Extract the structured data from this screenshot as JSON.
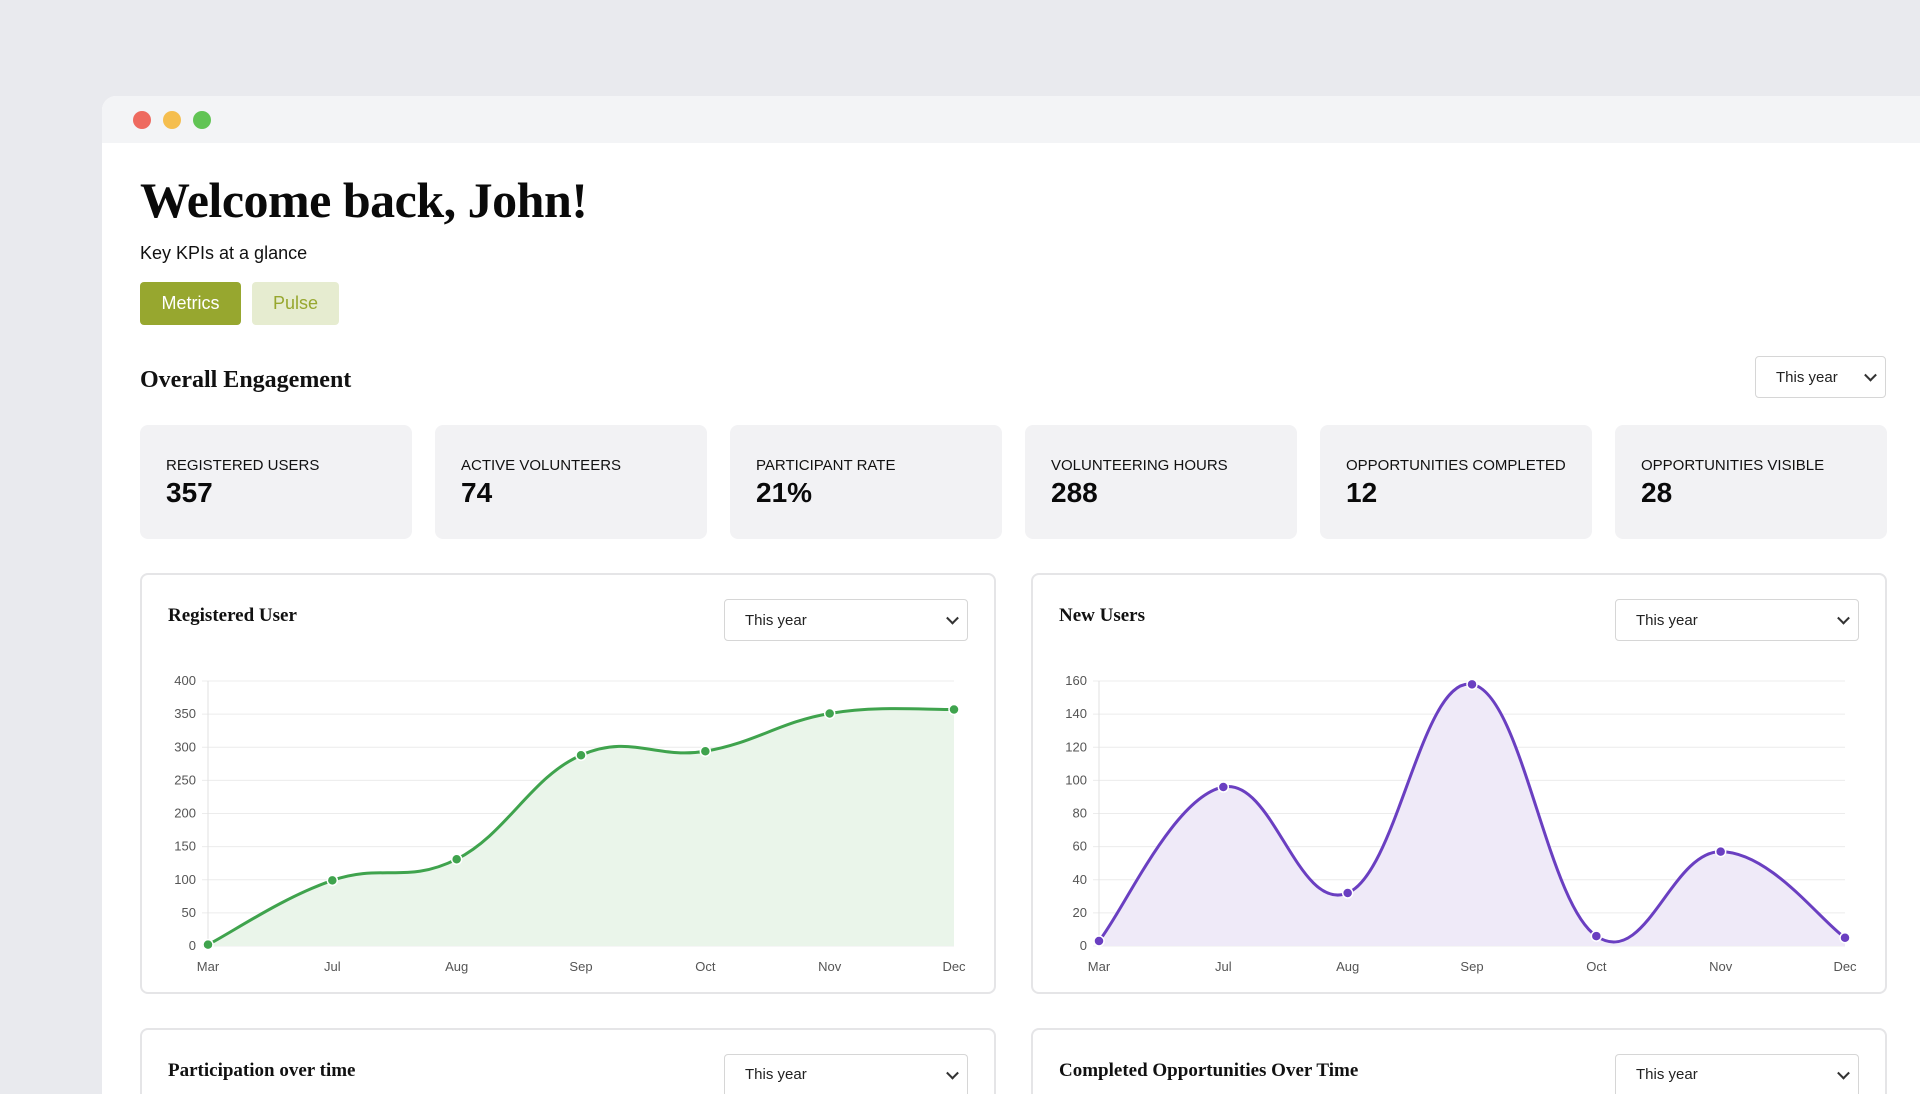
{
  "window": {
    "controls": [
      {
        "name": "close",
        "color": "#ee6a5f"
      },
      {
        "name": "minimize",
        "color": "#f5be4f"
      },
      {
        "name": "maximize",
        "color": "#61c454"
      }
    ]
  },
  "header": {
    "title": "Welcome back, John!",
    "subtitle": "Key KPIs at a glance"
  },
  "tabs": [
    {
      "label": "Metrics",
      "active": true
    },
    {
      "label": "Pulse",
      "active": false
    }
  ],
  "colors": {
    "accent": "#97a72f",
    "accent_light": "#e6ecd0",
    "green_series": "#3fa34d",
    "purple_series": "#6a3fc1"
  },
  "engagement": {
    "title": "Overall Engagement",
    "period": "This year",
    "kpis": [
      {
        "label": "REGISTERED USERS",
        "value": "357"
      },
      {
        "label": "ACTIVE VOLUNTEERS",
        "value": "74"
      },
      {
        "label": "PARTICIPANT RATE",
        "value": "21%"
      },
      {
        "label": "VOLUNTEERING HOURS",
        "value": "288"
      },
      {
        "label": "OPPORTUNITIES COMPLETED",
        "value": "12"
      },
      {
        "label": "OPPORTUNITIES VISIBLE",
        "value": "28"
      }
    ]
  },
  "cards": [
    {
      "title": "Registered User",
      "period": "This year"
    },
    {
      "title": "New Users",
      "period": "This year"
    },
    {
      "title": "Participation over time",
      "period": "This year"
    },
    {
      "title": "Completed Opportunities Over Time",
      "period": "This year"
    }
  ],
  "chart_data": [
    {
      "type": "area",
      "title": "Registered User",
      "categories": [
        "Mar",
        "Jul",
        "Aug",
        "Sep",
        "Oct",
        "Nov",
        "Dec"
      ],
      "values": [
        2,
        99,
        131,
        288,
        294,
        351,
        357
      ],
      "ylim": [
        0,
        400
      ],
      "yticks": [
        "0",
        "50",
        "100",
        "150",
        "200",
        "250",
        "300",
        "350",
        "400"
      ],
      "grid": true,
      "color": "#3fa34d",
      "fill": "#eaf5ea"
    },
    {
      "type": "area",
      "title": "New Users",
      "categories": [
        "Mar",
        "Jul",
        "Aug",
        "Sep",
        "Oct",
        "Nov",
        "Dec"
      ],
      "values": [
        3,
        96,
        32,
        158,
        6,
        57,
        5
      ],
      "ylim": [
        0,
        160
      ],
      "yticks": [
        "0",
        "20",
        "40",
        "60",
        "80",
        "100",
        "120",
        "140",
        "160"
      ],
      "grid": true,
      "color": "#6a3fc1",
      "fill": "#efeaf8"
    }
  ]
}
